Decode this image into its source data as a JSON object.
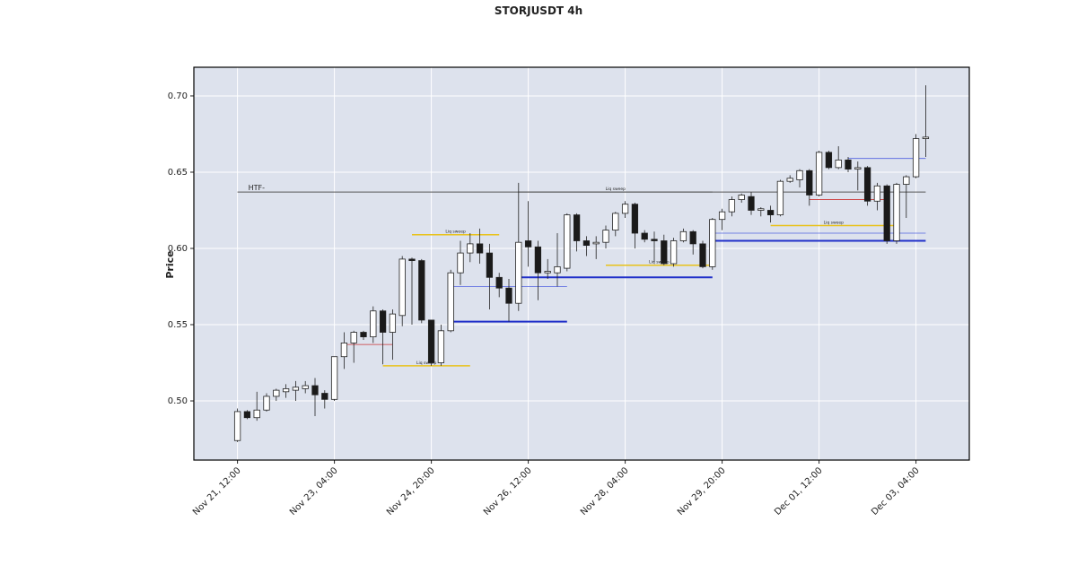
{
  "chart_data": {
    "type": "candlestick",
    "title": "STORJUSDT 4h",
    "ylabel": "Price",
    "categories": [
      "Nov 21, 12:00",
      null,
      null,
      null,
      null,
      null,
      null,
      null,
      null,
      null,
      "Nov 23, 04:00",
      null,
      null,
      null,
      null,
      null,
      null,
      null,
      null,
      null,
      "Nov 24, 20:00",
      null,
      null,
      null,
      null,
      null,
      null,
      null,
      null,
      null,
      "Nov 26, 12:00",
      null,
      null,
      null,
      null,
      null,
      null,
      null,
      null,
      null,
      "Nov 28, 04:00",
      null,
      null,
      null,
      null,
      null,
      null,
      null,
      null,
      null,
      "Nov 29, 20:00",
      null,
      null,
      null,
      null,
      null,
      null,
      null,
      null,
      null,
      "Dec 01, 12:00",
      null,
      null,
      null,
      null,
      null,
      null,
      null,
      null,
      null,
      "Dec 03, 04:00",
      null
    ],
    "open": [
      0.474,
      0.493,
      0.489,
      0.494,
      0.503,
      0.506,
      0.507,
      0.508,
      0.51,
      0.505,
      0.501,
      0.529,
      0.538,
      0.545,
      0.542,
      0.559,
      0.545,
      0.556,
      0.593,
      0.592,
      0.553,
      0.525,
      0.546,
      0.584,
      0.597,
      0.603,
      0.597,
      0.581,
      0.574,
      0.564,
      0.605,
      0.601,
      0.584,
      0.584,
      0.587,
      0.622,
      0.605,
      0.603,
      0.604,
      0.612,
      0.623,
      0.629,
      0.61,
      0.606,
      0.605,
      0.59,
      0.605,
      0.611,
      0.603,
      0.588,
      0.619,
      0.624,
      0.632,
      0.634,
      0.625,
      0.625,
      0.622,
      0.644,
      0.645,
      0.651,
      0.635,
      0.663,
      0.653,
      0.658,
      0.652,
      0.653,
      0.631,
      0.641,
      0.605,
      0.642,
      0.647,
      0.672
    ],
    "high": [
      0.495,
      0.494,
      0.506,
      0.505,
      0.508,
      0.511,
      0.513,
      0.513,
      0.515,
      0.507,
      0.529,
      0.545,
      0.546,
      0.546,
      0.562,
      0.56,
      0.56,
      0.595,
      0.594,
      0.593,
      0.553,
      0.55,
      0.586,
      0.605,
      0.61,
      0.613,
      0.603,
      0.584,
      0.58,
      0.643,
      0.631,
      0.605,
      0.593,
      0.61,
      0.623,
      0.623,
      0.608,
      0.608,
      0.615,
      0.624,
      0.631,
      0.63,
      0.612,
      0.611,
      0.609,
      0.607,
      0.613,
      0.612,
      0.605,
      0.62,
      0.626,
      0.634,
      0.636,
      0.637,
      0.627,
      0.628,
      0.645,
      0.648,
      0.652,
      0.652,
      0.664,
      0.664,
      0.667,
      0.66,
      0.657,
      0.654,
      0.643,
      0.642,
      0.643,
      0.648,
      0.675,
      0.707
    ],
    "low": [
      0.473,
      0.488,
      0.487,
      0.493,
      0.5,
      0.502,
      0.5,
      0.505,
      0.49,
      0.495,
      0.5,
      0.521,
      0.525,
      0.54,
      0.538,
      0.524,
      0.527,
      0.549,
      0.55,
      0.551,
      0.523,
      0.523,
      0.545,
      0.576,
      0.591,
      0.59,
      0.56,
      0.568,
      0.552,
      0.559,
      0.588,
      0.566,
      0.58,
      0.575,
      0.585,
      0.598,
      0.595,
      0.593,
      0.6,
      0.608,
      0.62,
      0.6,
      0.604,
      0.591,
      0.589,
      0.588,
      0.604,
      0.596,
      0.587,
      0.586,
      0.612,
      0.621,
      0.63,
      0.622,
      0.621,
      0.617,
      0.621,
      0.643,
      0.64,
      0.628,
      0.634,
      0.652,
      0.652,
      0.65,
      0.638,
      0.628,
      0.625,
      0.603,
      0.603,
      0.62,
      0.646,
      0.66
    ],
    "close": [
      0.493,
      0.489,
      0.494,
      0.503,
      0.507,
      0.508,
      0.509,
      0.51,
      0.504,
      0.501,
      0.529,
      0.538,
      0.545,
      0.542,
      0.559,
      0.545,
      0.557,
      0.593,
      0.592,
      0.553,
      0.525,
      0.546,
      0.584,
      0.597,
      0.603,
      0.597,
      0.581,
      0.574,
      0.564,
      0.604,
      0.601,
      0.584,
      0.585,
      0.588,
      0.622,
      0.605,
      0.602,
      0.604,
      0.612,
      0.623,
      0.629,
      0.61,
      0.606,
      0.605,
      0.59,
      0.605,
      0.611,
      0.603,
      0.588,
      0.619,
      0.624,
      0.632,
      0.635,
      0.625,
      0.626,
      0.622,
      0.644,
      0.646,
      0.651,
      0.635,
      0.663,
      0.653,
      0.658,
      0.652,
      0.653,
      0.631,
      0.641,
      0.605,
      0.642,
      0.647,
      0.672,
      0.673
    ],
    "up_color": "#ffffff",
    "down_color": "#1a1a1a",
    "levels": [
      {
        "price": 0.637,
        "start": 0,
        "end": 71,
        "color": "#555555",
        "width": 1,
        "label": "HTF-"
      },
      {
        "price": 0.637,
        "start": 29,
        "end": 49,
        "color": "#555555",
        "width": 1,
        "label": "Liq sweep"
      },
      {
        "price": 0.523,
        "start": 15,
        "end": 24,
        "color": "#e8c21a",
        "width": 1.5,
        "label": "Liq sweep"
      },
      {
        "price": 0.609,
        "start": 18,
        "end": 27,
        "color": "#e8c21a",
        "width": 1.5,
        "label": "Liq sweep"
      },
      {
        "price": 0.589,
        "start": 38,
        "end": 49,
        "color": "#e8c21a",
        "width": 1.5,
        "label": "Liq sweep"
      },
      {
        "price": 0.615,
        "start": 55,
        "end": 68,
        "color": "#e8c21a",
        "width": 1.5,
        "label": "Liq sweep"
      },
      {
        "price": 0.552,
        "start": 22,
        "end": 34,
        "color": "#1f2fc9",
        "width": 2
      },
      {
        "price": 0.581,
        "start": 29,
        "end": 49,
        "color": "#1f2fc9",
        "width": 2
      },
      {
        "price": 0.605,
        "start": 49,
        "end": 71,
        "color": "#1f2fc9",
        "width": 2
      },
      {
        "price": 0.575,
        "start": 22,
        "end": 34,
        "color": "#5060e0",
        "width": 0.8
      },
      {
        "price": 0.61,
        "start": 49,
        "end": 71,
        "color": "#5060e0",
        "width": 0.8
      },
      {
        "price": 0.659,
        "start": 63,
        "end": 71,
        "color": "#5060e0",
        "width": 0.8
      },
      {
        "price": 0.537,
        "start": 11,
        "end": 16,
        "color": "#cc3333",
        "width": 0.8
      },
      {
        "price": 0.632,
        "start": 59,
        "end": 67,
        "color": "#cc3333",
        "width": 0.8
      }
    ],
    "ylim": [
      0.4612,
      0.7188
    ],
    "yticks": [
      {
        "value": 0.5,
        "label": "0.50"
      },
      0.55,
      {
        "value": 0.6,
        "label": "0.60"
      },
      0.65,
      {
        "value": 0.7,
        "label": "0.70"
      }
    ],
    "grid": true
  }
}
